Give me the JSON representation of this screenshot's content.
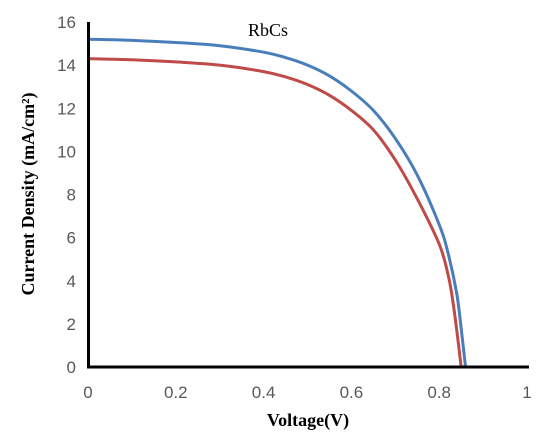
{
  "chart_data": {
    "type": "line",
    "title": "",
    "annotation": "RbCs",
    "xlabel": "Voltage(V)",
    "ylabel": "Current Density (mA/cm²)",
    "xlim": [
      0,
      1
    ],
    "ylim": [
      0,
      16
    ],
    "x_ticks": [
      0,
      0.2,
      0.4,
      0.6,
      0.8,
      1
    ],
    "x_tick_labels": [
      "0",
      "0.2",
      "0.4",
      "0.6",
      "0.8",
      "1"
    ],
    "y_ticks": [
      0,
      2,
      4,
      6,
      8,
      10,
      12,
      14,
      16
    ],
    "y_tick_labels": [
      "0",
      "2",
      "4",
      "6",
      "8",
      "10",
      "12",
      "14",
      "16"
    ],
    "grid": false,
    "legend": "none",
    "series": [
      {
        "color": "#4a7ebb",
        "x": [
          0,
          0.1,
          0.2,
          0.3,
          0.4,
          0.45,
          0.5,
          0.55,
          0.6,
          0.65,
          0.7,
          0.75,
          0.8,
          0.82,
          0.84,
          0.85,
          0.86
        ],
        "y": [
          15.2,
          15.15,
          15.05,
          14.9,
          14.6,
          14.35,
          14.0,
          13.5,
          12.8,
          11.9,
          10.6,
          8.9,
          6.6,
          5.3,
          3.4,
          1.8,
          0
        ]
      },
      {
        "color": "#be4b48",
        "x": [
          0,
          0.1,
          0.2,
          0.3,
          0.4,
          0.45,
          0.5,
          0.55,
          0.6,
          0.65,
          0.7,
          0.75,
          0.8,
          0.82,
          0.83,
          0.84,
          0.85
        ],
        "y": [
          14.3,
          14.25,
          14.15,
          14.0,
          13.7,
          13.45,
          13.1,
          12.6,
          11.9,
          11.0,
          9.6,
          7.8,
          5.7,
          4.3,
          3.2,
          1.7,
          0
        ]
      }
    ]
  }
}
